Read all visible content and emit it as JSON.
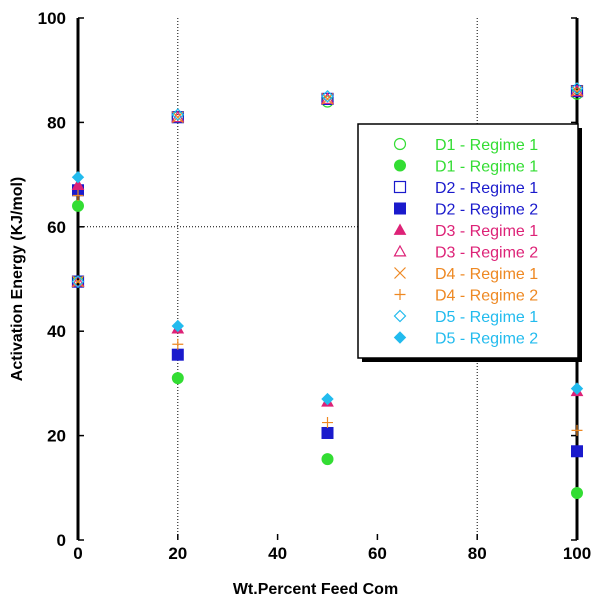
{
  "chart_data": {
    "type": "scatter",
    "title": "",
    "xlabel": "Wt.Percent Feed Com",
    "ylabel": "Activation Energy (KJ/mol)",
    "xlim": [
      0,
      100
    ],
    "ylim": [
      0,
      100
    ],
    "xticks": [
      0,
      20,
      40,
      60,
      80,
      100
    ],
    "yticks": [
      0,
      20,
      40,
      60,
      80,
      100
    ],
    "grid": "dotted lines at x=20, x=80 and y=60",
    "legend_position": "right",
    "series": [
      {
        "name": "D1 - Regime 1",
        "marker": "circle-open",
        "color": "#33dd33",
        "x": [
          0,
          20,
          50,
          100
        ],
        "y": [
          49.5,
          81,
          84,
          85.5
        ]
      },
      {
        "name": "D1 - Regime 1",
        "marker": "circle-filled",
        "color": "#33dd33",
        "x": [
          0,
          20,
          50,
          100
        ],
        "y": [
          64,
          31,
          15.5,
          9
        ]
      },
      {
        "name": "D2 - Regime 1",
        "marker": "square-open",
        "color": "#1a1acc",
        "x": [
          0,
          20,
          50,
          100
        ],
        "y": [
          49.5,
          81,
          84.5,
          86
        ]
      },
      {
        "name": "D2 - Regime 2",
        "marker": "square-filled",
        "color": "#1a1acc",
        "x": [
          0,
          20,
          50,
          100
        ],
        "y": [
          67,
          35.5,
          20.5,
          17
        ]
      },
      {
        "name": "D3 - Regime 1",
        "marker": "triangle-filled",
        "color": "#dd2277",
        "x": [
          0,
          20,
          50,
          100
        ],
        "y": [
          68,
          40.5,
          26.5,
          28.5
        ]
      },
      {
        "name": "D3 - Regime 2",
        "marker": "triangle-open",
        "color": "#dd2277",
        "x": [
          0,
          20,
          50,
          100
        ],
        "y": [
          49.5,
          81,
          84.5,
          86
        ]
      },
      {
        "name": "D4 - Regime 1",
        "marker": "x",
        "color": "#ee8822",
        "x": [
          0,
          20,
          50,
          100
        ],
        "y": [
          49.5,
          81,
          84.5,
          86
        ]
      },
      {
        "name": "D4 - Regime 2",
        "marker": "plus",
        "color": "#ee8822",
        "x": [
          0,
          20,
          50,
          100
        ],
        "y": [
          66,
          37.5,
          22.5,
          21
        ]
      },
      {
        "name": "D5 - Regime 1",
        "marker": "diamond-open",
        "color": "#22bbee",
        "x": [
          0,
          20,
          50,
          100
        ],
        "y": [
          49.5,
          81.5,
          85,
          86.5
        ]
      },
      {
        "name": "D5 - Regime 2",
        "marker": "diamond-filled",
        "color": "#22bbee",
        "x": [
          0,
          20,
          50,
          100
        ],
        "y": [
          69.5,
          41,
          27,
          29
        ]
      }
    ]
  }
}
